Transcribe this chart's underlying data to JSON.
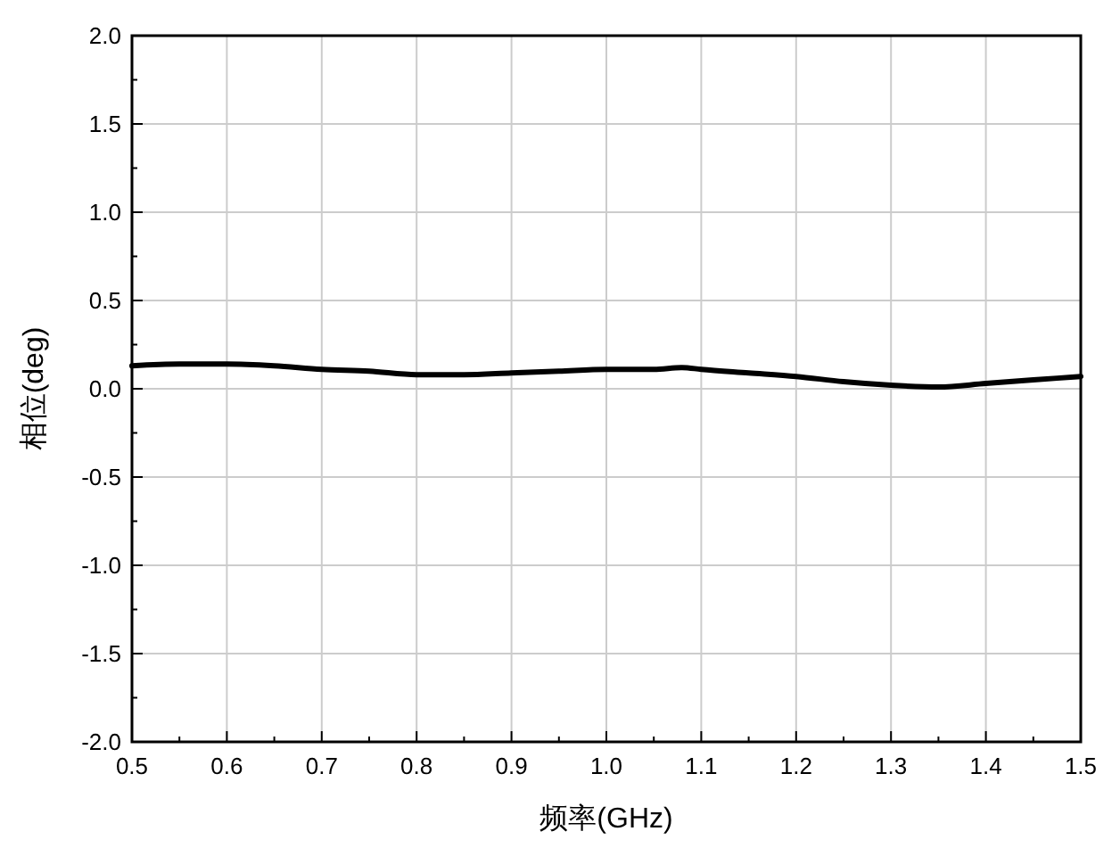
{
  "chart_data": {
    "type": "line",
    "xlabel": "频率(GHz)",
    "ylabel": "相位(deg)",
    "x": [
      0.5,
      0.55,
      0.6,
      0.65,
      0.7,
      0.75,
      0.8,
      0.85,
      0.9,
      0.95,
      1.0,
      1.05,
      1.08,
      1.1,
      1.15,
      1.2,
      1.25,
      1.3,
      1.35,
      1.4,
      1.45,
      1.5
    ],
    "series": [
      {
        "color": "#000000",
        "values": [
          0.13,
          0.14,
          0.14,
          0.13,
          0.11,
          0.1,
          0.08,
          0.08,
          0.09,
          0.1,
          0.11,
          0.11,
          0.12,
          0.11,
          0.09,
          0.07,
          0.04,
          0.02,
          0.01,
          0.03,
          0.05,
          0.07
        ]
      }
    ],
    "xlim": [
      0.5,
      1.5
    ],
    "ylim": [
      -2.0,
      2.0
    ],
    "xticks": [
      0.5,
      0.6,
      0.7,
      0.8,
      0.9,
      {
        "value": 1.0,
        "label": "1.0"
      },
      1.1,
      1.2,
      1.3,
      1.4,
      1.5
    ],
    "yticks": [
      {
        "value": -2.0,
        "label": "-2.0"
      },
      -1.5,
      {
        "value": -1.0,
        "label": "-1.0"
      },
      -0.5,
      {
        "value": 0.0,
        "label": "0.0"
      },
      0.5,
      {
        "value": 1.0,
        "label": "1.0"
      },
      1.5,
      {
        "value": 2.0,
        "label": "2.0"
      }
    ],
    "grid": true,
    "marker": "none",
    "line_style": "solid"
  }
}
